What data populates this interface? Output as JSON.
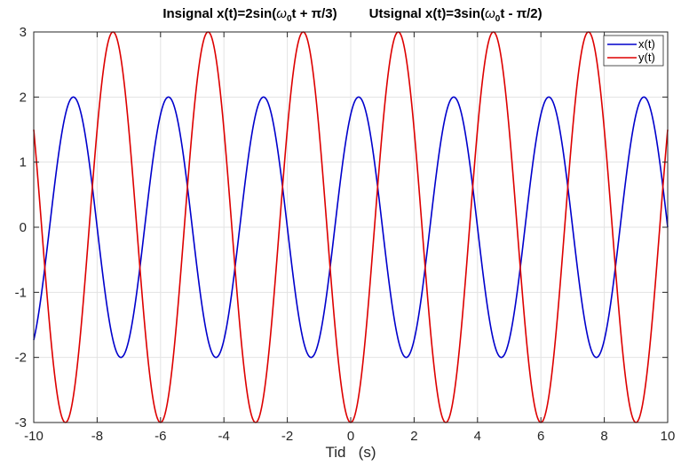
{
  "chart_data": {
    "type": "line",
    "title": "Insignal x(t)=2sin(ω₀t + π/3)        Utsignal x(t)=3sin(ω₀t - π/2)",
    "title_parts": {
      "left_prefix": "Insignal x(t)=2sin(",
      "left_suffix": "t + π/3)",
      "right_prefix": "Utsignal x(t)=3sin(",
      "right_suffix": "t - π/2)",
      "omega": "ω",
      "sub": "0"
    },
    "xlabel": "Tid   (s)",
    "ylabel": "",
    "xlim": [
      -10,
      10
    ],
    "ylim": [
      -3,
      3
    ],
    "xticks": [
      -10,
      -8,
      -6,
      -4,
      -2,
      0,
      2,
      4,
      6,
      8,
      10
    ],
    "yticks": [
      -3,
      -2,
      -1,
      0,
      1,
      2,
      3
    ],
    "grid": true,
    "legend_position": "top-right",
    "omega0": 2.0944,
    "series": [
      {
        "name": "x(t)",
        "amplitude": 2,
        "phase": 1.0472,
        "color": "#0000cc"
      },
      {
        "name": "y(t)",
        "amplitude": 3,
        "phase": -1.5708,
        "color": "#dd0000"
      }
    ]
  }
}
